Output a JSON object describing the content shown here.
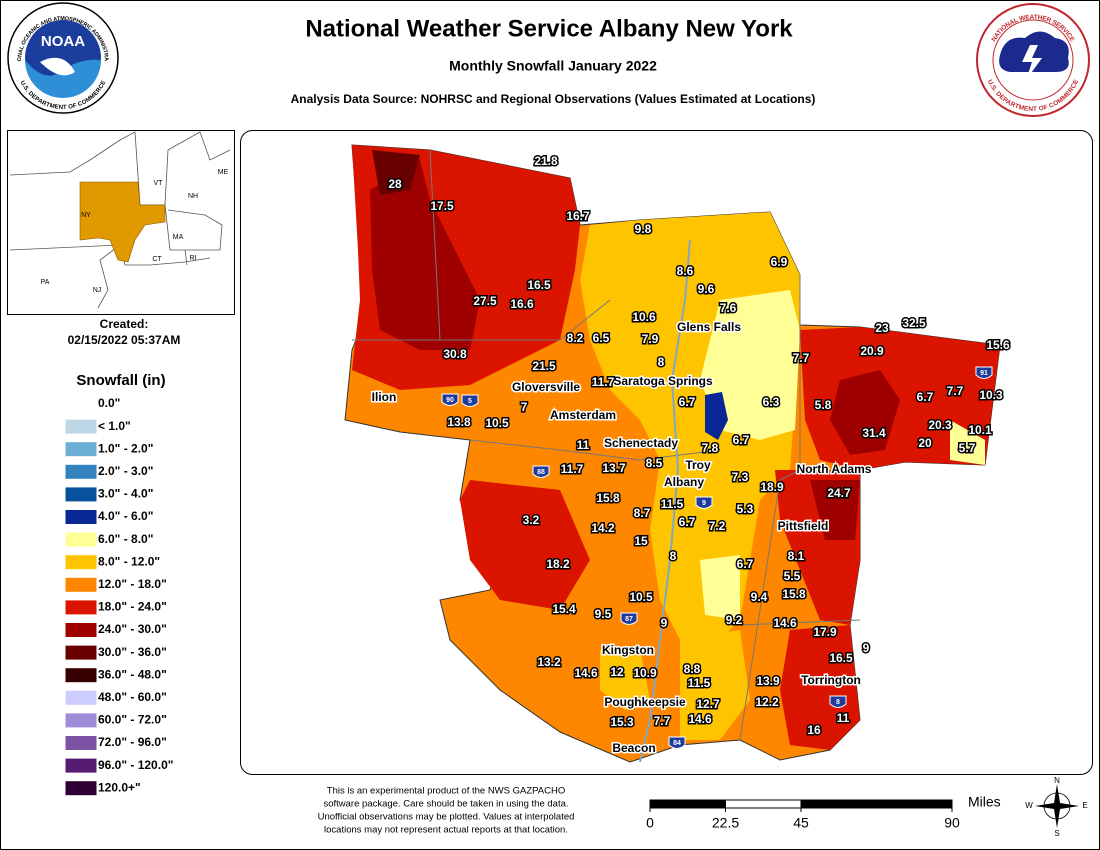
{
  "header": {
    "title": "National Weather Service Albany New York",
    "subtitle": "Monthly Snowfall January 2022",
    "source": "Analysis Data Source: NOHRSC and Regional Observations (Values Estimated at Locations)"
  },
  "logos": {
    "noaa": "NOAA",
    "noaa_top": "NATIONAL OCEANIC AND ATMOSPHERIC ADMINISTRATION",
    "noaa_bottom": "U.S. DEPARTMENT OF COMMERCE",
    "nws_top": "NATIONAL WEATHER SERVICE",
    "nws_bottom": "U.S. DEPARTMENT OF COMMERCE"
  },
  "inset": {
    "states": [
      "ME",
      "VT",
      "NH",
      "NY",
      "MA",
      "CT",
      "RI",
      "PA",
      "NJ"
    ],
    "color": "#e09a00"
  },
  "created": {
    "label": "Created:",
    "date": "02/15/2022 05:37AM"
  },
  "legend": {
    "title": "Snowfall (in)",
    "entries": [
      {
        "label": "0.0\"",
        "color": "#ffffff"
      },
      {
        "label": "< 1.0\"",
        "color": "#bdd7e7"
      },
      {
        "label": "1.0\" - 2.0\"",
        "color": "#6baed6"
      },
      {
        "label": "2.0\" - 3.0\"",
        "color": "#3182bd"
      },
      {
        "label": "3.0\" - 4.0\"",
        "color": "#08519c"
      },
      {
        "label": "4.0\" - 6.0\"",
        "color": "#082694"
      },
      {
        "label": "6.0\" - 8.0\"",
        "color": "#ffff96"
      },
      {
        "label": "8.0\" - 12.0\"",
        "color": "#ffc400"
      },
      {
        "label": "12.0\" - 18.0\"",
        "color": "#ff8700"
      },
      {
        "label": "18.0\" - 24.0\"",
        "color": "#db1400"
      },
      {
        "label": "24.0\" - 30.0\"",
        "color": "#9e0000"
      },
      {
        "label": "30.0\" - 36.0\"",
        "color": "#690000"
      },
      {
        "label": "36.0\" - 48.0\"",
        "color": "#360000"
      },
      {
        "label": "48.0\" - 60.0\"",
        "color": "#ccccff"
      },
      {
        "label": "60.0\" - 72.0\"",
        "color": "#9f8cd8"
      },
      {
        "label": "72.0\" - 96.0\"",
        "color": "#7c52a5"
      },
      {
        "label": "96.0\" - 120.0\"",
        "color": "#561c72"
      },
      {
        "label": "120.0+\"",
        "color": "#2e0033"
      }
    ]
  },
  "map": {
    "cities": [
      "Glens Falls",
      "Saratoga Springs",
      "Gloversville",
      "Ilion",
      "Amsterdam",
      "Schenectady",
      "Troy",
      "Albany",
      "North Adams",
      "Pittsfield",
      "Kingston",
      "Torrington",
      "Poughkeepsie",
      "Beacon"
    ],
    "highways": [
      "90",
      "5",
      "88",
      "9",
      "87",
      "84",
      "91",
      "8"
    ],
    "values": [
      28,
      17.5,
      21.8,
      16.7,
      9.8,
      8.6,
      6.9,
      9.6,
      7.6,
      16.5,
      27.5,
      16.6,
      10.6,
      8.2,
      6.5,
      7.9,
      23,
      32.5,
      15.6,
      20.9,
      30.8,
      21.5,
      8,
      7.7,
      11.7,
      6.7,
      6.3,
      5.8,
      6.7,
      7.7,
      10.3,
      13.8,
      10.5,
      7,
      31.4,
      20.3,
      10.1,
      20,
      5.7,
      11,
      7.8,
      6.7,
      11.7,
      13.7,
      8.5,
      7.3,
      24.7,
      18.9,
      15.8,
      11.5,
      8.7,
      5.3,
      3.2,
      14.2,
      6.7,
      7.2,
      15,
      8,
      8.1,
      18.2,
      6.7,
      5.5,
      15.8,
      9.4,
      10.5,
      15.4,
      9.5,
      9,
      9.2,
      14.6,
      17.9,
      16.5,
      9,
      13.2,
      14.6,
      12,
      10.9,
      8.8,
      11.5,
      13.9,
      12.2,
      12.7,
      15.3,
      7.7,
      14.6,
      11,
      16
    ]
  },
  "disclaimer": [
    "This is an experimental product of the NWS GAZPACHO",
    "software package. Care should be taken in using the data.",
    "Unofficial observations may be plotted. Values at interpolated",
    "locations may not represent actual reports at that location."
  ],
  "scale": {
    "unit": "Miles",
    "ticks": [
      0,
      22.5,
      45,
      90
    ],
    "xlim": [
      0,
      90
    ]
  },
  "compass": [
    "N",
    "E",
    "S",
    "W"
  ]
}
